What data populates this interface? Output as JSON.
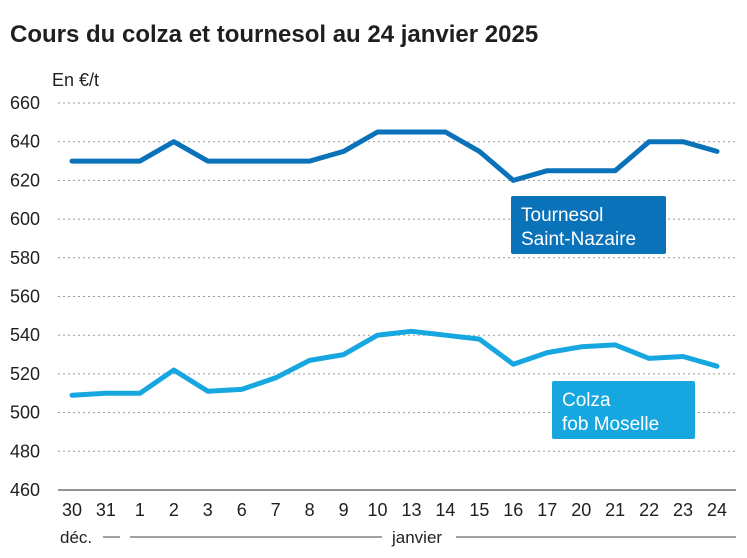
{
  "title": "Cours du colza et tournesol au 24 janvier 2025",
  "colors": {
    "tournesol": "#0a72b8",
    "colza": "#16a7e0",
    "grid": "#9a9a9a",
    "text": "#1f1f1f"
  },
  "chart_data": {
    "type": "line",
    "title": "Cours du colza et tournesol au 24 janvier 2025",
    "ylabel": "En €/t",
    "xlabel": "",
    "ylim": [
      460,
      660
    ],
    "yticks": [
      460,
      480,
      500,
      520,
      540,
      560,
      580,
      600,
      620,
      640,
      660
    ],
    "grid": true,
    "categories": [
      "30",
      "31",
      "1",
      "2",
      "3",
      "6",
      "7",
      "8",
      "9",
      "10",
      "13",
      "14",
      "15",
      "16",
      "17",
      "20",
      "21",
      "22",
      "23",
      "24"
    ],
    "periods": {
      "dec": "déc.",
      "jan": "janvier"
    },
    "series": [
      {
        "name": "Tournesol Saint-Nazaire",
        "label_lines": [
          "Tournesol",
          "Saint-Nazaire"
        ],
        "color": "#0a72b8",
        "values": [
          630,
          630,
          630,
          640,
          630,
          630,
          630,
          630,
          635,
          645,
          645,
          645,
          635,
          620,
          625,
          625,
          625,
          640,
          640,
          635
        ]
      },
      {
        "name": "Colza fob Moselle",
        "label_lines": [
          "Colza",
          "fob Moselle"
        ],
        "color": "#16a7e0",
        "values": [
          509,
          510,
          510,
          522,
          511,
          512,
          518,
          527,
          530,
          540,
          542,
          540,
          538,
          525,
          531,
          534,
          535,
          528,
          529,
          524
        ]
      }
    ]
  }
}
